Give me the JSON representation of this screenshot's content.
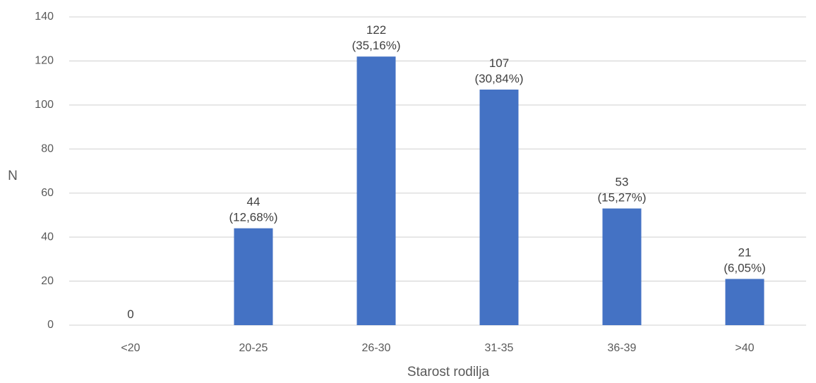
{
  "chart_data": {
    "type": "bar",
    "categories": [
      "<20",
      "20-25",
      "26-30",
      "31-35",
      "36-39",
      ">40"
    ],
    "values": [
      0,
      44,
      122,
      107,
      53,
      21
    ],
    "data_labels": [
      [
        "0"
      ],
      [
        "44",
        "(12,68%)"
      ],
      [
        "122",
        "(35,16%)"
      ],
      [
        "107",
        "(30,84%)"
      ],
      [
        "53",
        "(15,27%)"
      ],
      [
        "21",
        "(6,05%)"
      ]
    ],
    "xlabel": "Starost rodilja",
    "ylabel": "N",
    "ylim": [
      0,
      140
    ],
    "yticks": [
      0,
      20,
      40,
      60,
      80,
      100,
      120,
      140
    ],
    "grid": true,
    "legend": "none",
    "bar_color": "#4472C4",
    "grid_color": "#d9d9d9"
  }
}
